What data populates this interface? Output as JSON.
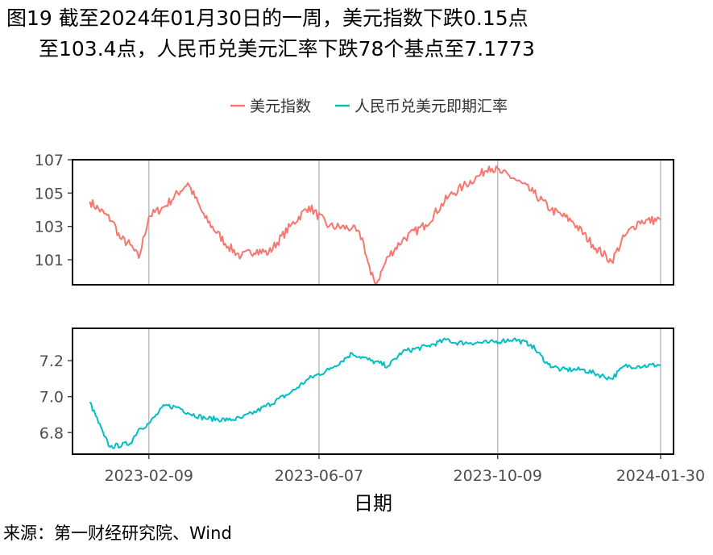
{
  "title": {
    "line1": "图19  截至2024年01月30日的一周，美元指数下跌0.15点",
    "line2": "至103.4点，人民币兑美元汇率下跌78个基点至7.1773"
  },
  "source": "来源：第一财经研究院、Wind",
  "colors": {
    "usd_index": "#F8766D",
    "cny_rate": "#00BFC4",
    "gridline": "#B3B3B3",
    "frame": "#000000"
  },
  "chart_data": [
    {
      "type": "line",
      "panel": "top",
      "series": [
        {
          "name": "美元指数",
          "x": [
            "2022-12-30",
            "2023-01-15",
            "2023-01-20",
            "2023-01-27",
            "2023-02-02",
            "2023-02-09",
            "2023-02-20",
            "2023-03-08",
            "2023-03-20",
            "2023-04-05",
            "2023-04-14",
            "2023-04-25",
            "2023-05-03",
            "2023-05-18",
            "2023-05-31",
            "2023-06-14",
            "2023-06-30",
            "2023-07-07",
            "2023-07-13",
            "2023-07-17",
            "2023-07-25",
            "2023-08-04",
            "2023-08-20",
            "2023-09-05",
            "2023-09-15",
            "2023-09-27",
            "2023-10-03",
            "2023-10-12",
            "2023-10-20",
            "2023-11-03",
            "2023-11-15",
            "2023-11-30",
            "2023-12-14",
            "2023-12-27",
            "2024-01-05",
            "2024-01-15",
            "2024-01-30"
          ],
          "values": [
            104.5,
            103.3,
            102.3,
            101.9,
            101.1,
            103.6,
            104.2,
            105.6,
            103.5,
            101.8,
            101.2,
            101.6,
            101.4,
            103.0,
            104.2,
            103.0,
            102.9,
            102.3,
            100.1,
            99.6,
            101.2,
            102.2,
            103.1,
            104.8,
            105.4,
            106.1,
            106.6,
            106.2,
            105.9,
            105.0,
            104.0,
            103.3,
            101.9,
            100.9,
            102.4,
            103.3,
            103.4
          ]
        }
      ],
      "x_ticks": [
        "2023-02-09",
        "2023-06-07",
        "2023-10-09",
        "2024-01-30"
      ],
      "y_ticks": [
        101,
        103,
        105,
        107
      ],
      "ylim": [
        99.5,
        107
      ],
      "grid": "vertical at x ticks"
    },
    {
      "type": "line",
      "panel": "bottom",
      "series": [
        {
          "name": "人民币兑美元即期汇率",
          "x": [
            "2022-12-30",
            "2023-01-09",
            "2023-01-13",
            "2023-01-27",
            "2023-02-02",
            "2023-02-09",
            "2023-02-20",
            "2023-03-02",
            "2023-03-08",
            "2023-03-20",
            "2023-04-05",
            "2023-04-14",
            "2023-04-25",
            "2023-05-18",
            "2023-05-31",
            "2023-06-14",
            "2023-06-30",
            "2023-07-13",
            "2023-07-25",
            "2023-08-04",
            "2023-08-21",
            "2023-09-05",
            "2023-09-08",
            "2023-09-20",
            "2023-10-03",
            "2023-10-12",
            "2023-10-20",
            "2023-11-01",
            "2023-11-13",
            "2023-11-22",
            "2023-12-07",
            "2023-12-27",
            "2024-01-05",
            "2024-01-15",
            "2024-01-30"
          ],
          "values": [
            6.97,
            6.78,
            6.72,
            6.74,
            6.82,
            6.85,
            6.95,
            6.94,
            6.91,
            6.88,
            6.87,
            6.88,
            6.92,
            7.02,
            7.1,
            7.15,
            7.24,
            7.2,
            7.17,
            7.25,
            7.28,
            7.32,
            7.3,
            7.3,
            7.3,
            7.31,
            7.32,
            7.29,
            7.18,
            7.15,
            7.15,
            7.1,
            7.17,
            7.17,
            7.1773
          ]
        }
      ],
      "x_ticks": [
        "2023-02-09",
        "2023-06-07",
        "2023-10-09",
        "2024-01-30"
      ],
      "y_ticks": [
        6.8,
        7.0,
        7.2
      ],
      "ylim": [
        6.68,
        7.38
      ],
      "grid": "vertical at x ticks"
    }
  ],
  "legend": {
    "position": "top-right",
    "items": [
      {
        "label": "美元指数",
        "color": "#F8766D"
      },
      {
        "label": "人民币兑美元即期汇率",
        "color": "#00BFC4"
      }
    ]
  },
  "axes": {
    "xlabel": "日期"
  }
}
